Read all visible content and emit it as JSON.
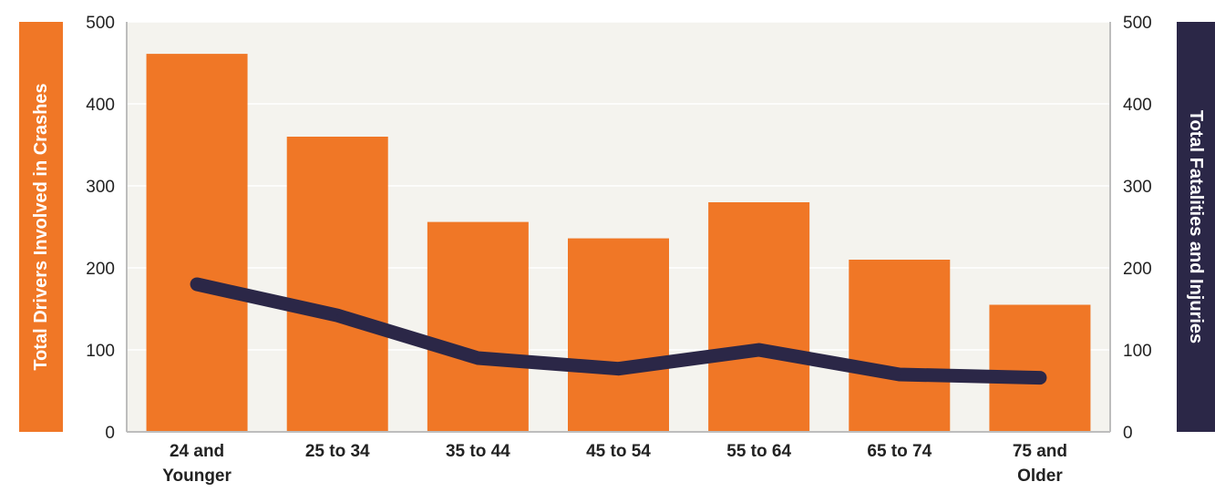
{
  "colors": {
    "bar": "#F07726",
    "line": "#2B2747",
    "plot_bg": "#F4F3EE",
    "axis": "#BDBDBD",
    "grid": "#FFFFFF",
    "tick_text": "#222222"
  },
  "chart_data": {
    "type": "bar",
    "title": "",
    "xlabel": "",
    "categories": [
      "24 and Younger",
      "25 to 34",
      "35 to 44",
      "45 to 54",
      "55 to 64",
      "65 to 74",
      "75 and Older"
    ],
    "category_label_lines": [
      [
        "24 and",
        "Younger"
      ],
      [
        "25 to 34"
      ],
      [
        "35 to 44"
      ],
      [
        "45 to 54"
      ],
      [
        "55 to 64"
      ],
      [
        "65 to 74"
      ],
      [
        "75 and",
        "Older"
      ]
    ],
    "series": [
      {
        "name": "Total Drivers Involved in Crashes",
        "type": "bar",
        "axis": "left",
        "values": [
          461,
          360,
          256,
          236,
          280,
          210,
          155
        ]
      },
      {
        "name": "Total Fatalities and Injuries",
        "type": "line",
        "axis": "right",
        "values": [
          180,
          142,
          90,
          77,
          100,
          70,
          66
        ]
      }
    ],
    "ylabel": "Total Drivers Involved in Crashes",
    "y2label": "Total Fatalities and Injuries",
    "ylim": [
      0,
      500
    ],
    "y2lim": [
      0,
      500
    ],
    "yticks": [
      "0",
      "100",
      "200",
      "300",
      "400",
      "500"
    ],
    "y2ticks": [
      "0",
      "100",
      "200",
      "300",
      "400",
      "500"
    ],
    "grid": true,
    "legend": "none"
  }
}
